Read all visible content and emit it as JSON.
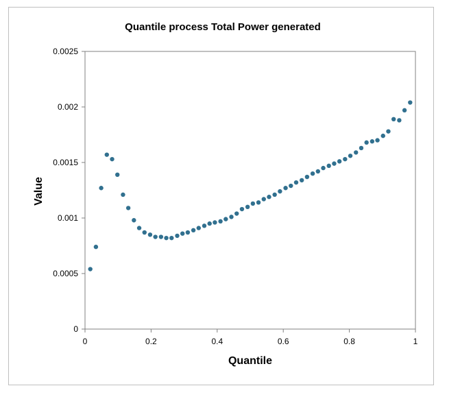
{
  "chart_data": {
    "type": "scatter",
    "title": "Quantile process Total Power generated",
    "xlabel": "Quantile",
    "ylabel": "Value",
    "xlim": [
      0,
      1
    ],
    "ylim": [
      0,
      0.0025
    ],
    "xticks": [
      0,
      0.2,
      0.4,
      0.6,
      0.8,
      1
    ],
    "yticks": [
      0,
      0.0005,
      0.001,
      0.0015,
      0.002,
      0.0025
    ],
    "xtick_labels": [
      "0",
      "0.2",
      "0.4",
      "0.6",
      "0.8",
      "1"
    ],
    "ytick_labels": [
      "0",
      "0.0005",
      "0.001",
      "0.0015",
      "0.002",
      "0.0025"
    ],
    "grid": false,
    "marker_color": "#31708f",
    "series": [
      {
        "name": "Total Power generated",
        "x": [
          0.016,
          0.033,
          0.049,
          0.066,
          0.082,
          0.098,
          0.115,
          0.131,
          0.148,
          0.164,
          0.18,
          0.197,
          0.213,
          0.23,
          0.246,
          0.262,
          0.279,
          0.295,
          0.311,
          0.328,
          0.344,
          0.361,
          0.377,
          0.393,
          0.41,
          0.426,
          0.443,
          0.459,
          0.475,
          0.492,
          0.508,
          0.525,
          0.541,
          0.557,
          0.574,
          0.59,
          0.607,
          0.623,
          0.639,
          0.656,
          0.672,
          0.689,
          0.705,
          0.721,
          0.738,
          0.754,
          0.77,
          0.787,
          0.803,
          0.82,
          0.836,
          0.852,
          0.869,
          0.885,
          0.902,
          0.918,
          0.934,
          0.951,
          0.967,
          0.984
        ],
        "y": [
          0.00054,
          0.00074,
          0.00127,
          0.00157,
          0.00153,
          0.00139,
          0.00121,
          0.00109,
          0.00098,
          0.00091,
          0.00087,
          0.00085,
          0.00083,
          0.00083,
          0.00082,
          0.00082,
          0.00084,
          0.00086,
          0.00087,
          0.00089,
          0.00091,
          0.00093,
          0.00095,
          0.00096,
          0.00097,
          0.00099,
          0.00101,
          0.00104,
          0.00108,
          0.0011,
          0.00113,
          0.00114,
          0.00117,
          0.00119,
          0.00121,
          0.00124,
          0.00127,
          0.00129,
          0.00132,
          0.00134,
          0.00137,
          0.0014,
          0.00142,
          0.00145,
          0.00147,
          0.00149,
          0.00151,
          0.00153,
          0.00156,
          0.00159,
          0.00163,
          0.00168,
          0.00169,
          0.0017,
          0.00174,
          0.00178,
          0.00189,
          0.00188,
          0.00197,
          0.00204
        ]
      }
    ]
  }
}
